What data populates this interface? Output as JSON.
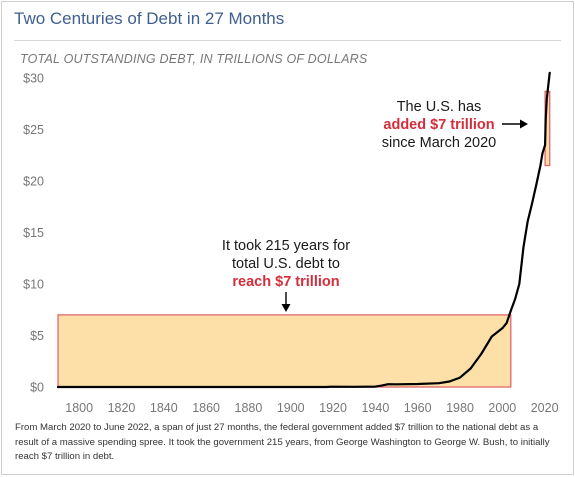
{
  "title": "Two Centuries of Debt in 27 Months",
  "chart_data": {
    "type": "area",
    "title": "Two Centuries of Debt in 27 Months",
    "ylabel": "TOTAL OUTSTANDING DEBT, IN TRILLIONS OF DOLLARS",
    "xlabel": "",
    "xlim": [
      1790,
      2023
    ],
    "ylim": [
      0,
      30
    ],
    "x_ticks": [
      1800,
      1820,
      1840,
      1860,
      1880,
      1900,
      1920,
      1940,
      1960,
      1980,
      2000,
      2020
    ],
    "y_ticks": [
      0,
      5,
      10,
      15,
      20,
      25,
      30
    ],
    "y_tick_labels": [
      "$0",
      "$5",
      "$10",
      "$15",
      "$20",
      "$25",
      "$30"
    ],
    "grid": false,
    "colors": {
      "line": "#000000",
      "highlight_fill": "#fde0a8",
      "highlight_border": "#e0676b",
      "emphasis_text": "#d42e3c"
    },
    "series": [
      {
        "values": [
          [
            1790,
            0.0001
          ],
          [
            1850,
            0.0001
          ],
          [
            1900,
            0.001
          ],
          [
            1917,
            0.003
          ],
          [
            1919,
            0.025
          ],
          [
            1930,
            0.016
          ],
          [
            1940,
            0.043
          ],
          [
            1943,
            0.14
          ],
          [
            1946,
            0.27
          ],
          [
            1950,
            0.26
          ],
          [
            1960,
            0.29
          ],
          [
            1970,
            0.37
          ],
          [
            1975,
            0.53
          ],
          [
            1980,
            0.91
          ],
          [
            1985,
            1.8
          ],
          [
            1990,
            3.2
          ],
          [
            1995,
            4.9
          ],
          [
            2000,
            5.7
          ],
          [
            2002,
            6.2
          ],
          [
            2004,
            7.4
          ],
          [
            2006,
            8.5
          ],
          [
            2008,
            10.0
          ],
          [
            2010,
            13.6
          ],
          [
            2012,
            16.1
          ],
          [
            2014,
            17.8
          ],
          [
            2016,
            19.6
          ],
          [
            2018,
            21.5
          ],
          [
            2019,
            22.7
          ],
          [
            2020.2,
            23.5
          ],
          [
            2020.5,
            26.0
          ],
          [
            2021,
            28.0
          ],
          [
            2022.4,
            30.5
          ]
        ]
      }
    ],
    "highlights": [
      {
        "x": [
          1790,
          2004
        ],
        "y": [
          0,
          7
        ]
      },
      {
        "x": [
          2020.2,
          2022.4
        ],
        "y": [
          21.5,
          28.7
        ]
      }
    ],
    "annotations": {
      "left": {
        "line1": "It took 215 years for",
        "line2": "total U.S. debt to",
        "line3": "reach $7 trillion"
      },
      "right": {
        "line1": "The U.S. has",
        "line2": "added $7 trillion",
        "line3": "since March 2020"
      }
    }
  },
  "footnote": "From March 2020 to June 2022, a span of just 27 months, the federal government added $7 trillion to the national debt as a result of a massive spending spree. It took the government 215 years, from George Washington to George W. Bush, to initially reach $7 trillion in debt."
}
